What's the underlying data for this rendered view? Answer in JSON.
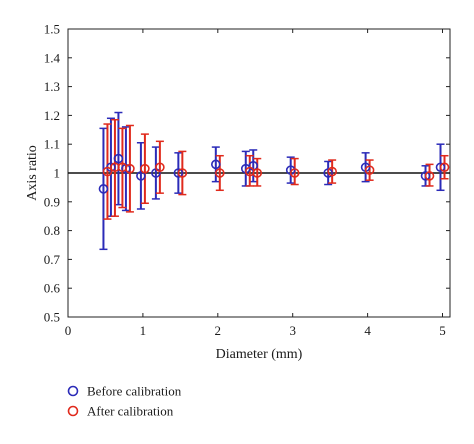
{
  "chart_data": {
    "type": "scatter",
    "xlabel": "Diameter (mm)",
    "ylabel": "Axis ratio",
    "xlim": [
      0,
      5.1
    ],
    "ylim": [
      0.5,
      1.5
    ],
    "x_ticks": [
      0,
      1,
      2,
      3,
      4,
      5
    ],
    "y_ticks": [
      0.5,
      0.6,
      0.7,
      0.8,
      0.9,
      1,
      1.1,
      1.2,
      1.3,
      1.4,
      1.5
    ],
    "reference_line": 1,
    "legend_position": "bottom-left",
    "series": [
      {
        "name": "Before calibration",
        "color": "#2b2bb8",
        "marker": "open-circle",
        "points": [
          {
            "x": 0.5,
            "y": 0.945,
            "low": 0.735,
            "high": 1.155
          },
          {
            "x": 0.6,
            "y": 1.02,
            "low": 0.85,
            "high": 1.19
          },
          {
            "x": 0.7,
            "y": 1.05,
            "low": 0.89,
            "high": 1.21
          },
          {
            "x": 0.8,
            "y": 1.015,
            "low": 0.87,
            "high": 1.16
          },
          {
            "x": 1.0,
            "y": 0.99,
            "low": 0.875,
            "high": 1.105
          },
          {
            "x": 1.2,
            "y": 1.0,
            "low": 0.91,
            "high": 1.09
          },
          {
            "x": 1.5,
            "y": 1.0,
            "low": 0.93,
            "high": 1.07
          },
          {
            "x": 2.0,
            "y": 1.03,
            "low": 0.97,
            "high": 1.09
          },
          {
            "x": 2.4,
            "y": 1.015,
            "low": 0.955,
            "high": 1.075
          },
          {
            "x": 2.5,
            "y": 1.025,
            "low": 0.97,
            "high": 1.08
          },
          {
            "x": 3.0,
            "y": 1.01,
            "low": 0.965,
            "high": 1.055
          },
          {
            "x": 3.5,
            "y": 1.0,
            "low": 0.96,
            "high": 1.04
          },
          {
            "x": 4.0,
            "y": 1.02,
            "low": 0.97,
            "high": 1.07
          },
          {
            "x": 4.8,
            "y": 0.99,
            "low": 0.955,
            "high": 1.025
          },
          {
            "x": 5.0,
            "y": 1.02,
            "low": 0.94,
            "high": 1.1
          }
        ]
      },
      {
        "name": "After calibration",
        "color": "#e02a1c",
        "marker": "open-circle",
        "points": [
          {
            "x": 0.5,
            "y": 1.005,
            "low": 0.84,
            "high": 1.17
          },
          {
            "x": 0.6,
            "y": 1.02,
            "low": 0.85,
            "high": 1.185
          },
          {
            "x": 0.7,
            "y": 1.02,
            "low": 0.88,
            "high": 1.155
          },
          {
            "x": 0.8,
            "y": 1.015,
            "low": 0.865,
            "high": 1.165
          },
          {
            "x": 1.0,
            "y": 1.015,
            "low": 0.895,
            "high": 1.135
          },
          {
            "x": 1.2,
            "y": 1.02,
            "low": 0.93,
            "high": 1.11
          },
          {
            "x": 1.5,
            "y": 1.0,
            "low": 0.925,
            "high": 1.075
          },
          {
            "x": 2.0,
            "y": 1.0,
            "low": 0.94,
            "high": 1.06
          },
          {
            "x": 2.4,
            "y": 1.005,
            "low": 0.955,
            "high": 1.06
          },
          {
            "x": 2.5,
            "y": 1.0,
            "low": 0.955,
            "high": 1.05
          },
          {
            "x": 3.0,
            "y": 1.0,
            "low": 0.96,
            "high": 1.05
          },
          {
            "x": 3.5,
            "y": 1.005,
            "low": 0.965,
            "high": 1.045
          },
          {
            "x": 4.0,
            "y": 1.01,
            "low": 0.975,
            "high": 1.045
          },
          {
            "x": 4.8,
            "y": 0.99,
            "low": 0.955,
            "high": 1.03
          },
          {
            "x": 5.0,
            "y": 1.02,
            "low": 0.98,
            "high": 1.06
          }
        ]
      }
    ]
  }
}
